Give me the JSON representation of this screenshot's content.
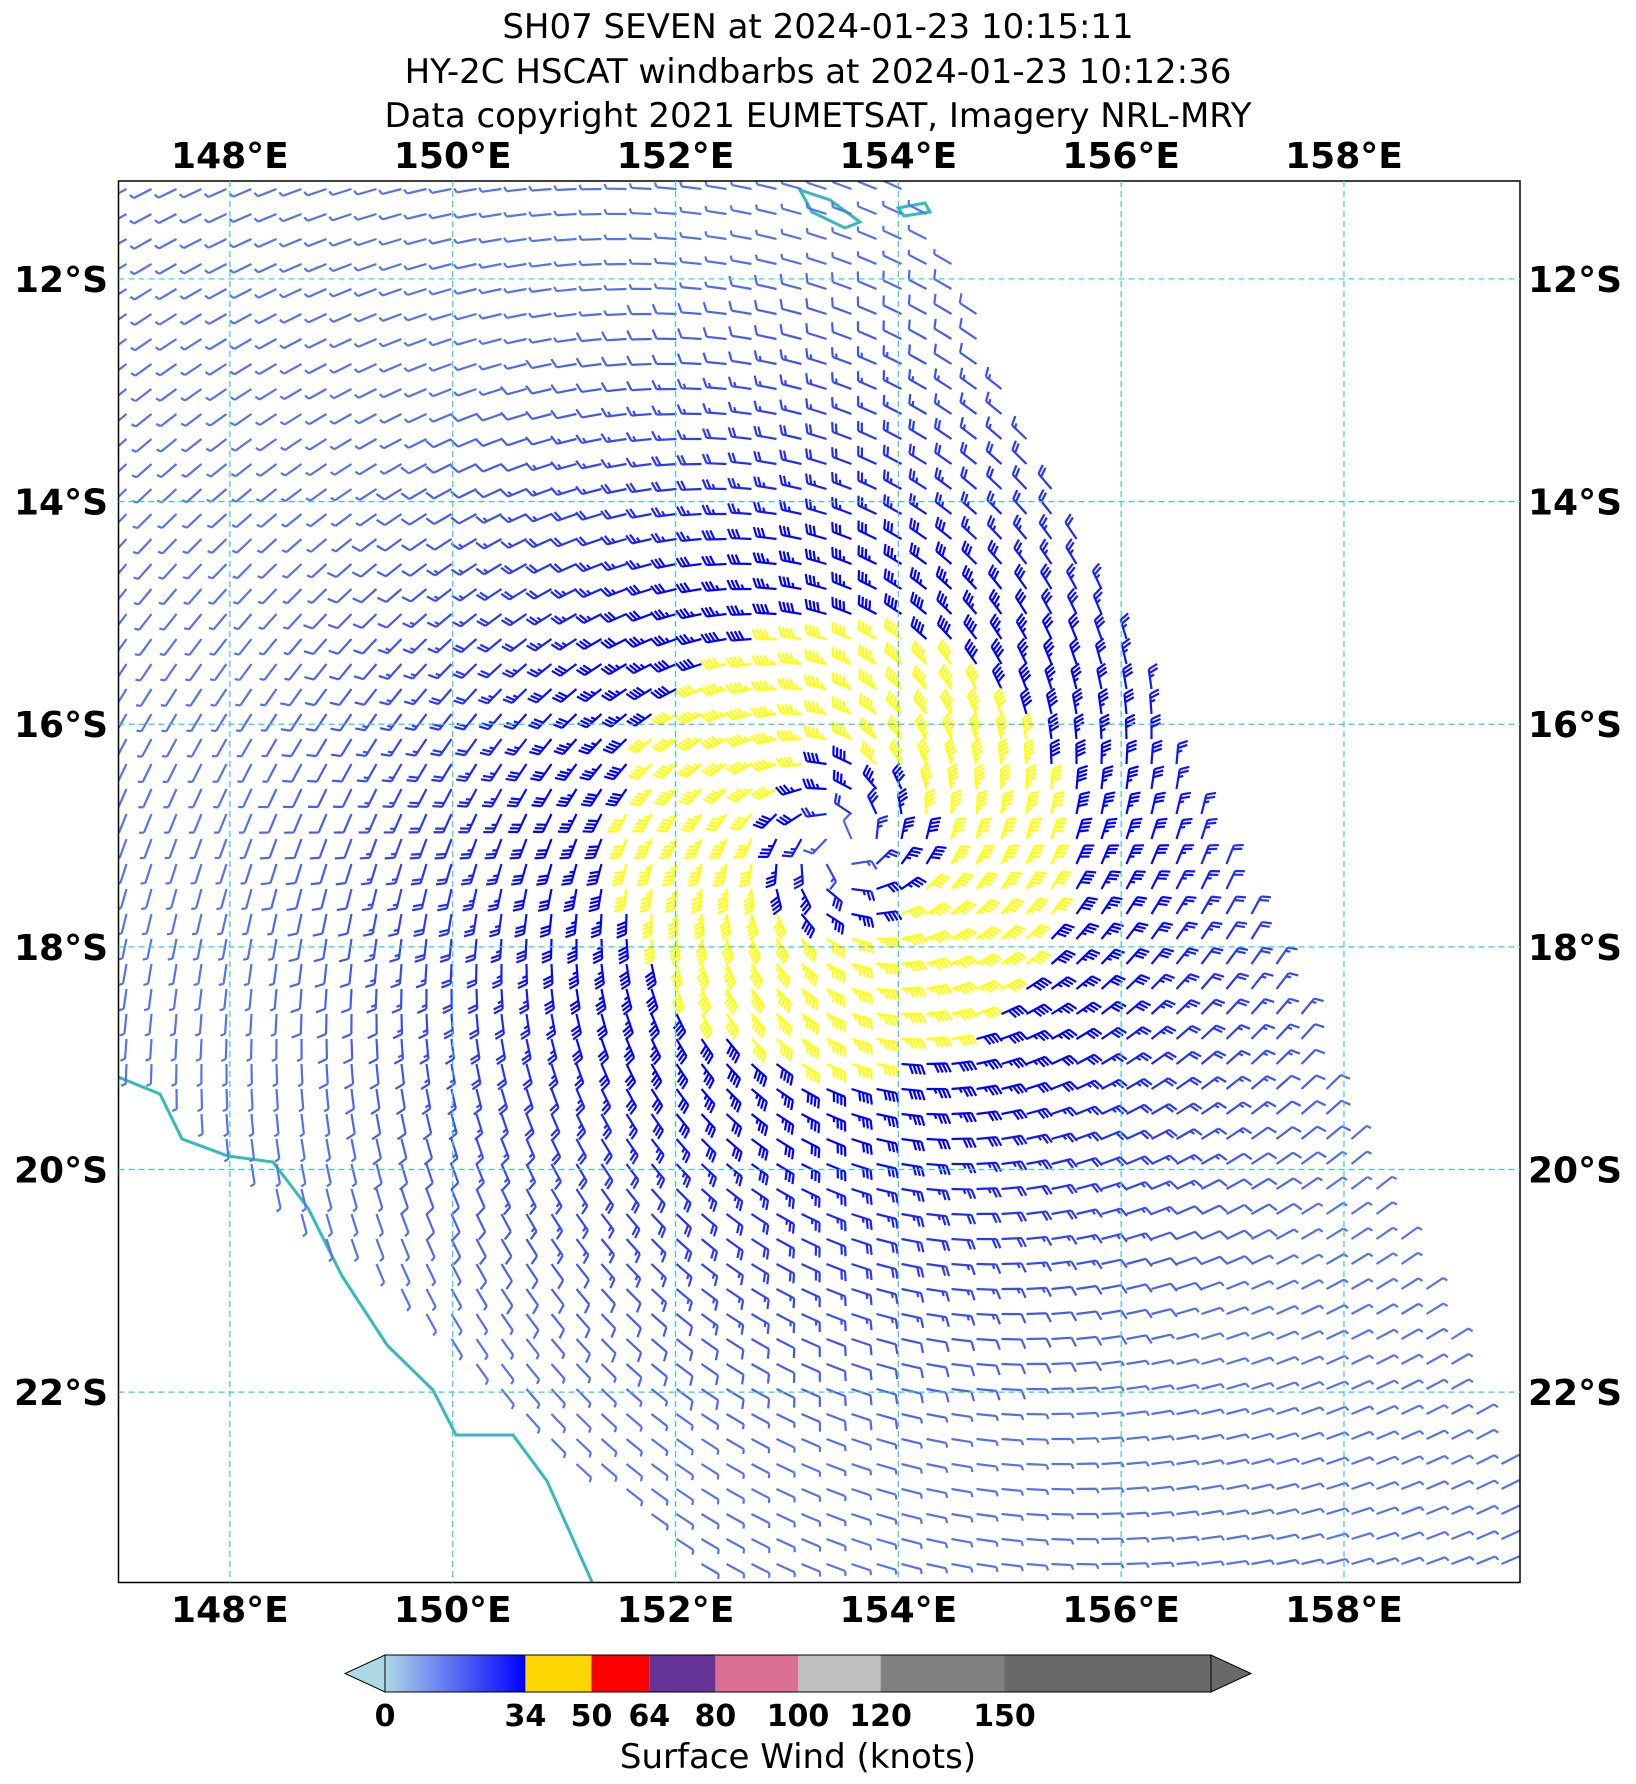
{
  "map": {
    "title": [
      "SH07 SEVEN at 2024-01-23 10:15:11",
      "HY-2C HSCAT windbarbs at 2024-01-23 10:12:36",
      "Data copyright 2021 EUMETSAT, Imagery NRL-MRY"
    ],
    "xlim": [
      147,
      159.58
    ],
    "ylim": [
      -11.12,
      -23.71
    ],
    "xticks": [
      {
        "value": 148,
        "label": "148°E"
      },
      {
        "value": 150,
        "label": "150°E"
      },
      {
        "value": 152,
        "label": "152°E"
      },
      {
        "value": 154,
        "label": "154°E"
      },
      {
        "value": 156,
        "label": "156°E"
      },
      {
        "value": 158,
        "label": "158°E"
      }
    ],
    "yticks": [
      {
        "value": -12,
        "label": "12°S"
      },
      {
        "value": -14,
        "label": "14°S"
      },
      {
        "value": -16,
        "label": "16°S"
      },
      {
        "value": -18,
        "label": "18°S"
      },
      {
        "value": -20,
        "label": "20°S"
      },
      {
        "value": -22,
        "label": "22°S"
      }
    ],
    "grid_color": "#33cccc",
    "colorbar": {
      "label": "Surface Wind (knots)",
      "lim": [
        0,
        200
      ],
      "ticks": [
        0,
        34,
        50,
        64,
        80,
        100,
        120,
        150
      ],
      "under_color": "#add8e6",
      "colors": [
        "#0000ff",
        "#ffd700",
        "#ff0000",
        "#663399",
        "#db7093",
        "#c0c0c0",
        "#808080",
        "#696969"
      ]
    }
  }
}
